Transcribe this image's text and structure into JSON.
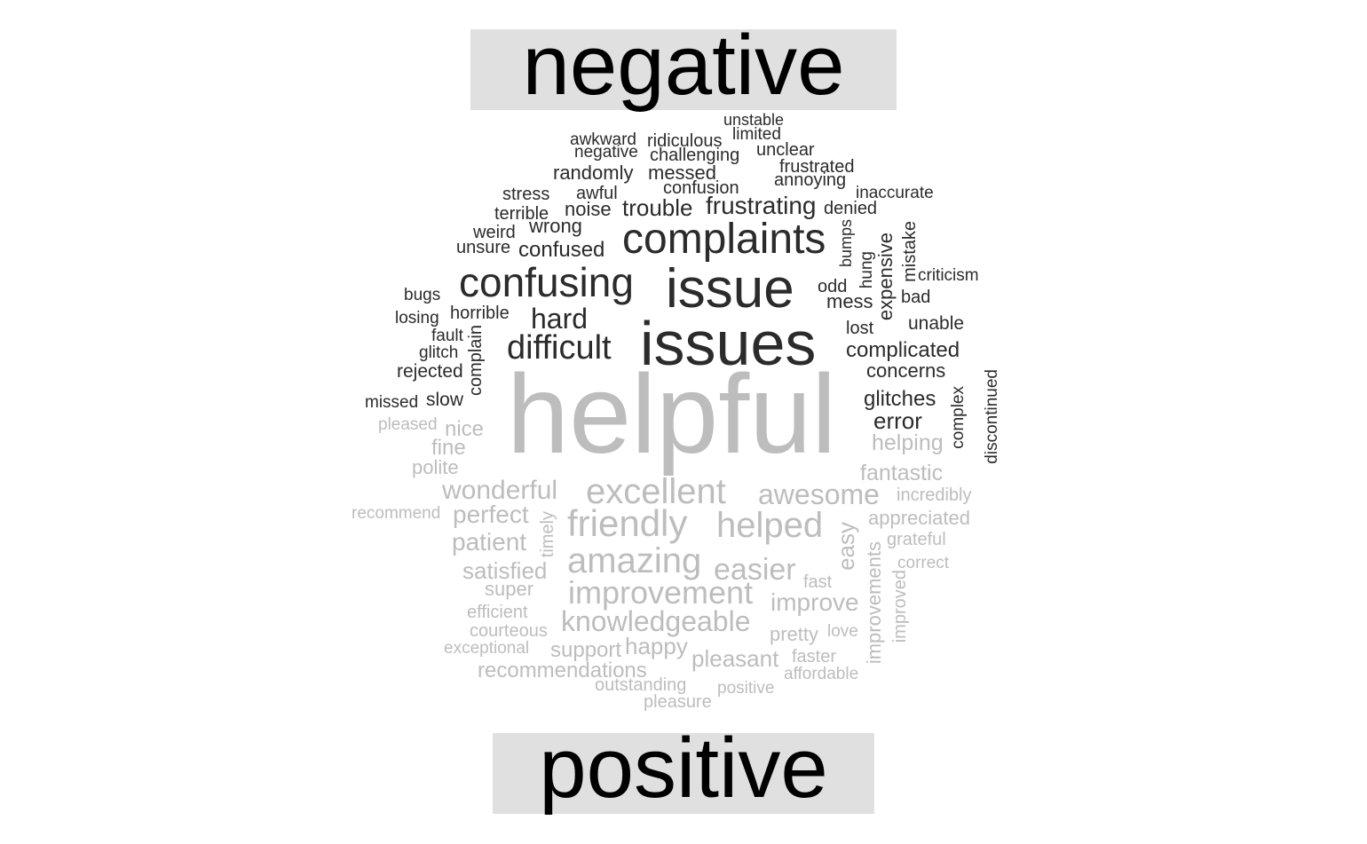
{
  "panels": {
    "negative": "negative",
    "positive": "positive"
  },
  "colors": {
    "negative": "#2b2b2b",
    "positive": "#bdbdbd",
    "panel": "#e0e0e0",
    "title": "#000000"
  },
  "negative_words": [
    "unstable",
    "awkward",
    "ridiculous",
    "limited",
    "negative",
    "challenging",
    "unclear",
    "frustrated",
    "randomly",
    "messed",
    "annoying",
    "stress",
    "awful",
    "confusion",
    "inaccurate",
    "terrible",
    "noise",
    "trouble",
    "frustrating",
    "denied",
    "weird",
    "wrong",
    "complaints",
    "unsure",
    "confused",
    "bumps",
    "expensive",
    "mistake",
    "hung",
    "criticism",
    "bugs",
    "confusing",
    "issue",
    "odd",
    "bad",
    "losing",
    "horrible",
    "mess",
    "hard",
    "unable",
    "fault",
    "lost",
    "glitch",
    "complain",
    "difficult",
    "issues",
    "complicated",
    "rejected",
    "concerns",
    "missed",
    "slow",
    "glitches",
    "complex",
    "discontinued",
    "error"
  ],
  "positive_words": [
    "helpful",
    "pleased",
    "nice",
    "helping",
    "fine",
    "polite",
    "fantastic",
    "wonderful",
    "excellent",
    "awesome",
    "incredibly",
    "recommend",
    "perfect",
    "friendly",
    "helped",
    "appreciated",
    "timely",
    "easy",
    "patient",
    "grateful",
    "improvements",
    "correct",
    "amazing",
    "satisfied",
    "easier",
    "improved",
    "fast",
    "super",
    "improvement",
    "improve",
    "efficient",
    "knowledgeable",
    "courteous",
    "pretty",
    "love",
    "exceptional",
    "support",
    "happy",
    "faster",
    "pleasant",
    "recommendations",
    "affordable",
    "outstanding",
    "positive",
    "pleasure"
  ]
}
